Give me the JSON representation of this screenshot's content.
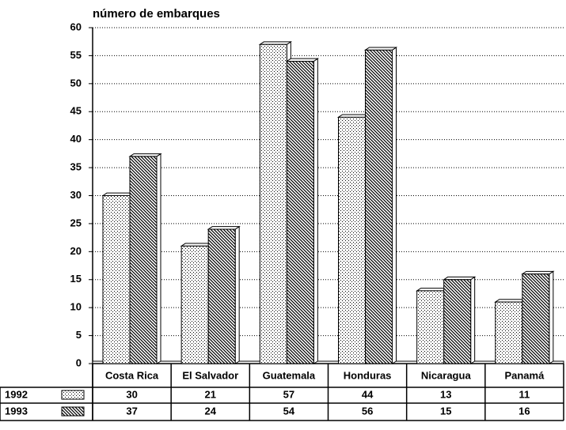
{
  "chart_data": {
    "type": "bar",
    "title": "número de embarques",
    "categories": [
      "Costa Rica",
      "El Salvador",
      "Guatemala",
      "Honduras",
      "Nicaragua",
      "Panamá"
    ],
    "series": [
      {
        "name": "1992",
        "pattern": "dots",
        "values": [
          30,
          21,
          57,
          44,
          13,
          11
        ]
      },
      {
        "name": "1993",
        "pattern": "hatch",
        "values": [
          37,
          24,
          54,
          56,
          15,
          16
        ]
      }
    ],
    "ylim": [
      0,
      60
    ],
    "yticks": [
      0,
      5,
      10,
      15,
      20,
      25,
      30,
      35,
      40,
      45,
      50,
      55,
      60
    ],
    "grid": true
  }
}
